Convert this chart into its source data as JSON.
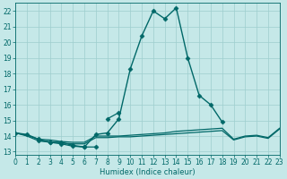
{
  "xlabel": "Humidex (Indice chaleur)",
  "xlim": [
    0,
    23
  ],
  "ylim": [
    12.8,
    22.5
  ],
  "yticks": [
    13,
    14,
    15,
    16,
    17,
    18,
    19,
    20,
    21,
    22
  ],
  "xticks": [
    0,
    1,
    2,
    3,
    4,
    5,
    6,
    7,
    8,
    9,
    10,
    11,
    12,
    13,
    14,
    15,
    16,
    17,
    18,
    19,
    20,
    21,
    22,
    23
  ],
  "background_color": "#c5e8e8",
  "grid_color": "#9ecece",
  "line_color": "#006868",
  "series": [
    {
      "x": [
        0,
        1,
        2,
        3,
        4,
        5,
        6,
        7,
        8,
        9,
        10,
        11,
        12,
        13,
        14,
        15,
        16,
        17,
        18
      ],
      "y": [
        14.2,
        14.1,
        13.8,
        13.6,
        13.6,
        13.4,
        13.3,
        14.1,
        14.2,
        15.1,
        18.3,
        20.4,
        22.0,
        21.5,
        22.2,
        19.0,
        16.6,
        16.0,
        14.9
      ],
      "marker": "D",
      "markersize": 2.5,
      "linewidth": 1.0
    },
    {
      "x": [
        0,
        1,
        2,
        3,
        4,
        5,
        6,
        7,
        8,
        9,
        10,
        11,
        12,
        13,
        14,
        15,
        16,
        17,
        18,
        19,
        20,
        21,
        22,
        23
      ],
      "y": [
        14.2,
        14.05,
        13.8,
        13.75,
        13.65,
        13.6,
        13.6,
        14.0,
        14.0,
        14.0,
        14.05,
        14.1,
        14.15,
        14.2,
        14.3,
        14.35,
        14.4,
        14.45,
        14.5,
        13.8,
        14.0,
        14.05,
        13.9,
        14.5
      ],
      "marker": null,
      "markersize": 0,
      "linewidth": 0.9
    },
    {
      "x": [
        0,
        1,
        2,
        3,
        4,
        5,
        6,
        7,
        8,
        9,
        10,
        11,
        12,
        13,
        14,
        15,
        16,
        17,
        18,
        19,
        20,
        21,
        22,
        23
      ],
      "y": [
        14.2,
        14.0,
        13.7,
        13.65,
        13.55,
        13.5,
        13.5,
        13.9,
        13.9,
        13.95,
        13.95,
        14.0,
        14.05,
        14.1,
        14.15,
        14.2,
        14.25,
        14.3,
        14.35,
        13.75,
        13.95,
        14.0,
        13.85,
        14.45
      ],
      "marker": null,
      "markersize": 0,
      "linewidth": 0.9
    },
    {
      "x": [
        2,
        3,
        4,
        5,
        6,
        7
      ],
      "y": [
        13.7,
        13.6,
        13.5,
        13.35,
        13.3,
        13.3
      ],
      "marker": "D",
      "markersize": 2.5,
      "linewidth": 0.9
    },
    {
      "x": [
        8,
        9
      ],
      "y": [
        15.1,
        15.5
      ],
      "marker": "D",
      "markersize": 2.5,
      "linewidth": 0.9
    }
  ],
  "tick_fontsize": 5.5,
  "xlabel_fontsize": 6
}
